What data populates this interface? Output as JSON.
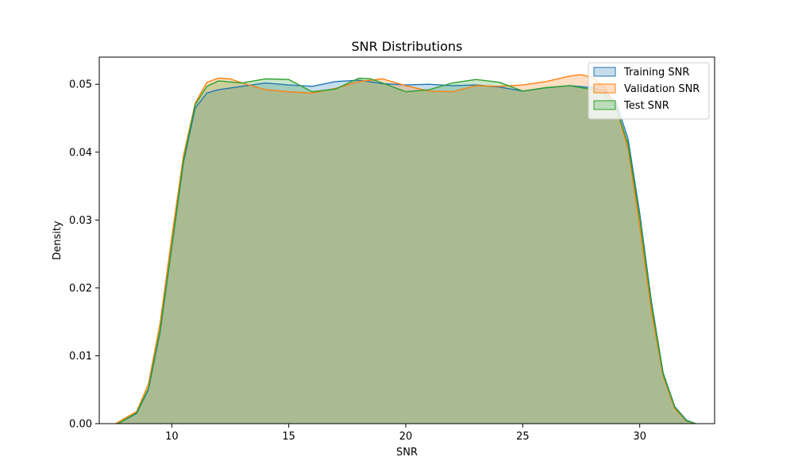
{
  "chart_data": {
    "type": "area",
    "title": "SNR Distributions",
    "xlabel": "SNR",
    "ylabel": "Density",
    "xlim": [
      6.9,
      33.2
    ],
    "ylim": [
      0.0,
      0.054
    ],
    "xticks": [
      10,
      15,
      20,
      25,
      30
    ],
    "xtick_labels": [
      "10",
      "15",
      "20",
      "25",
      "30"
    ],
    "yticks": [
      0.0,
      0.01,
      0.02,
      0.03,
      0.04,
      0.05
    ],
    "ytick_labels": [
      "0.00",
      "0.01",
      "0.02",
      "0.03",
      "0.04",
      "0.05"
    ],
    "grid": false,
    "legend_position": "top-right",
    "series": [
      {
        "name": "Training SNR",
        "color": "#1f77b4",
        "x": [
          7.7,
          8.5,
          9.0,
          9.5,
          10.0,
          10.5,
          11.0,
          11.5,
          12.0,
          13.0,
          14.0,
          15.0,
          16.0,
          17.0,
          18.0,
          19.0,
          20.0,
          21.0,
          22.0,
          23.0,
          24.0,
          25.0,
          26.0,
          27.0,
          28.0,
          28.5,
          29.0,
          29.5,
          30.0,
          30.5,
          31.0,
          31.5,
          32.0,
          32.4
        ],
        "y": [
          0.0,
          0.0015,
          0.005,
          0.0135,
          0.026,
          0.0385,
          0.0465,
          0.0487,
          0.0492,
          0.0497,
          0.0502,
          0.0499,
          0.0497,
          0.0504,
          0.0506,
          0.0501,
          0.0499,
          0.05,
          0.0498,
          0.0499,
          0.0496,
          0.049,
          0.0495,
          0.0498,
          0.0495,
          0.049,
          0.0472,
          0.042,
          0.031,
          0.018,
          0.0075,
          0.0025,
          0.0005,
          0.0
        ]
      },
      {
        "name": "Validation SNR",
        "color": "#ff7f0e",
        "x": [
          7.6,
          8.5,
          9.0,
          9.5,
          10.0,
          10.5,
          11.0,
          11.5,
          12.0,
          12.5,
          13.0,
          14.0,
          15.0,
          16.0,
          17.0,
          18.0,
          19.0,
          20.0,
          21.0,
          22.0,
          23.0,
          24.0,
          25.0,
          26.0,
          27.0,
          27.5,
          28.0,
          28.5,
          29.0,
          29.5,
          30.0,
          30.5,
          31.0,
          31.5,
          32.0,
          32.4
        ],
        "y": [
          0.0,
          0.0018,
          0.0058,
          0.0148,
          0.0275,
          0.0395,
          0.0472,
          0.0503,
          0.0509,
          0.0508,
          0.0502,
          0.0492,
          0.0489,
          0.0487,
          0.0494,
          0.0504,
          0.0508,
          0.0498,
          0.049,
          0.0489,
          0.0498,
          0.0497,
          0.0499,
          0.0504,
          0.0512,
          0.0514,
          0.051,
          0.0495,
          0.0465,
          0.0405,
          0.029,
          0.0165,
          0.007,
          0.0022,
          0.0004,
          0.0
        ]
      },
      {
        "name": "Test SNR",
        "color": "#2ca02c",
        "x": [
          7.7,
          8.5,
          9.0,
          9.5,
          10.0,
          10.5,
          11.0,
          11.5,
          12.0,
          13.0,
          14.0,
          15.0,
          16.0,
          17.0,
          18.0,
          18.5,
          19.0,
          20.0,
          21.0,
          22.0,
          23.0,
          24.0,
          25.0,
          26.0,
          27.0,
          28.0,
          28.5,
          29.0,
          29.5,
          30.0,
          30.5,
          31.0,
          31.5,
          32.0,
          32.4
        ],
        "y": [
          0.0,
          0.0016,
          0.0052,
          0.0138,
          0.0262,
          0.0388,
          0.047,
          0.0497,
          0.0505,
          0.0502,
          0.0508,
          0.0507,
          0.0489,
          0.0493,
          0.0509,
          0.0508,
          0.0502,
          0.0489,
          0.0492,
          0.0502,
          0.0507,
          0.0503,
          0.049,
          0.0495,
          0.0498,
          0.0492,
          0.0485,
          0.0465,
          0.0412,
          0.0303,
          0.0175,
          0.0073,
          0.0024,
          0.0004,
          0.0
        ]
      }
    ]
  }
}
